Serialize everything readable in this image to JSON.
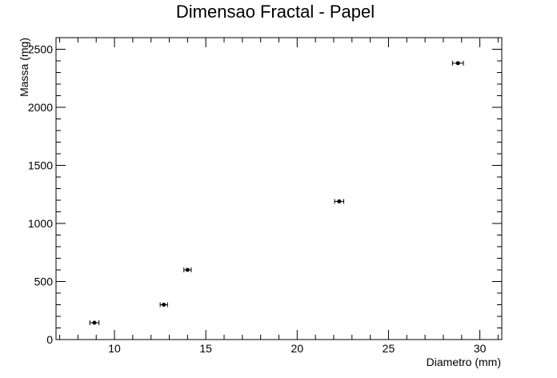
{
  "chart_data": {
    "type": "scatter",
    "title": "Dimensao Fractal - Papel",
    "xlabel": "Diametro (mm)",
    "ylabel": "Massa (mg)",
    "xlim": [
      6.8,
      31.2
    ],
    "ylim": [
      0,
      2600
    ],
    "x_ticks": [
      10,
      15,
      20,
      25,
      30
    ],
    "y_ticks": [
      0,
      500,
      1000,
      1500,
      2000,
      2500
    ],
    "grid": false,
    "legend": "none",
    "series": [
      {
        "points": [
          {
            "x": 8.9,
            "y": 145,
            "xerr": 0.25
          },
          {
            "x": 12.7,
            "y": 300,
            "xerr": 0.2
          },
          {
            "x": 14.0,
            "y": 600,
            "xerr": 0.2
          },
          {
            "x": 22.3,
            "y": 1190,
            "xerr": 0.25
          },
          {
            "x": 28.8,
            "y": 2380,
            "xerr": 0.3
          }
        ]
      }
    ]
  }
}
